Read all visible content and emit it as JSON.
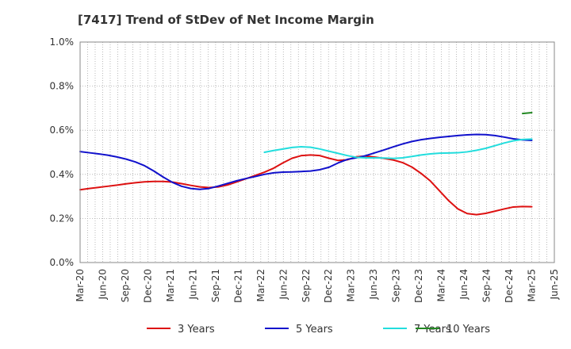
{
  "chart_data": {
    "type": "line",
    "title": "[7417]  Trend of StDev of Net Income Margin",
    "xlabel": "",
    "ylabel": "",
    "x_tick_labels": [
      "Mar-20",
      "Jun-20",
      "Sep-20",
      "Dec-20",
      "Mar-21",
      "Jun-21",
      "Sep-21",
      "Dec-21",
      "Mar-22",
      "Jun-22",
      "Sep-22",
      "Dec-22",
      "Mar-23",
      "Jun-23",
      "Sep-23",
      "Dec-23",
      "Mar-24",
      "Jun-24",
      "Sep-24",
      "Dec-24",
      "Mar-25",
      "Jun-25"
    ],
    "y_tick_labels": [
      "0.0%",
      "0.2%",
      "0.4%",
      "0.6%",
      "0.8%",
      "1.0%"
    ],
    "ylim": [
      0,
      1.0
    ],
    "grid": true,
    "legend_position": "bottom",
    "series": [
      {
        "name": "3 Years",
        "color": "#dd1111",
        "start_index": 0,
        "values": [
          0.33,
          0.336,
          0.341,
          0.346,
          0.351,
          0.357,
          0.362,
          0.366,
          0.368,
          0.368,
          0.365,
          0.358,
          0.35,
          0.343,
          0.34,
          0.343,
          0.352,
          0.366,
          0.38,
          0.395,
          0.41,
          0.428,
          0.452,
          0.473,
          0.485,
          0.488,
          0.485,
          0.473,
          0.463,
          0.466,
          0.48,
          0.483,
          0.478,
          0.472,
          0.465,
          0.453,
          0.433,
          0.404,
          0.37,
          0.325,
          0.28,
          0.243,
          0.222,
          0.217,
          0.223,
          0.233,
          0.243,
          0.252,
          0.254,
          0.253
        ]
      },
      {
        "name": "5 Years",
        "color": "#1111cc",
        "start_index": 0,
        "values": [
          0.503,
          0.498,
          0.493,
          0.487,
          0.479,
          0.469,
          0.456,
          0.439,
          0.415,
          0.388,
          0.364,
          0.346,
          0.336,
          0.332,
          0.336,
          0.347,
          0.359,
          0.371,
          0.381,
          0.39,
          0.4,
          0.407,
          0.41,
          0.411,
          0.413,
          0.415,
          0.421,
          0.432,
          0.452,
          0.468,
          0.475,
          0.485,
          0.498,
          0.511,
          0.525,
          0.538,
          0.549,
          0.557,
          0.563,
          0.568,
          0.572,
          0.576,
          0.579,
          0.581,
          0.58,
          0.576,
          0.569,
          0.561,
          0.556,
          0.554
        ]
      },
      {
        "name": "7 Years",
        "color": "#22dddd",
        "start_index": 20,
        "values": [
          0.5,
          0.508,
          0.515,
          0.522,
          0.525,
          0.523,
          0.515,
          0.505,
          0.495,
          0.485,
          0.477,
          0.475,
          0.475,
          0.474,
          0.472,
          0.475,
          0.481,
          0.488,
          0.493,
          0.496,
          0.497,
          0.498,
          0.502,
          0.509,
          0.518,
          0.53,
          0.542,
          0.552,
          0.558,
          0.56
        ]
      },
      {
        "name": "10 Years",
        "color": "#228822",
        "start_index": 48,
        "values": [
          0.676,
          0.68
        ]
      }
    ]
  }
}
